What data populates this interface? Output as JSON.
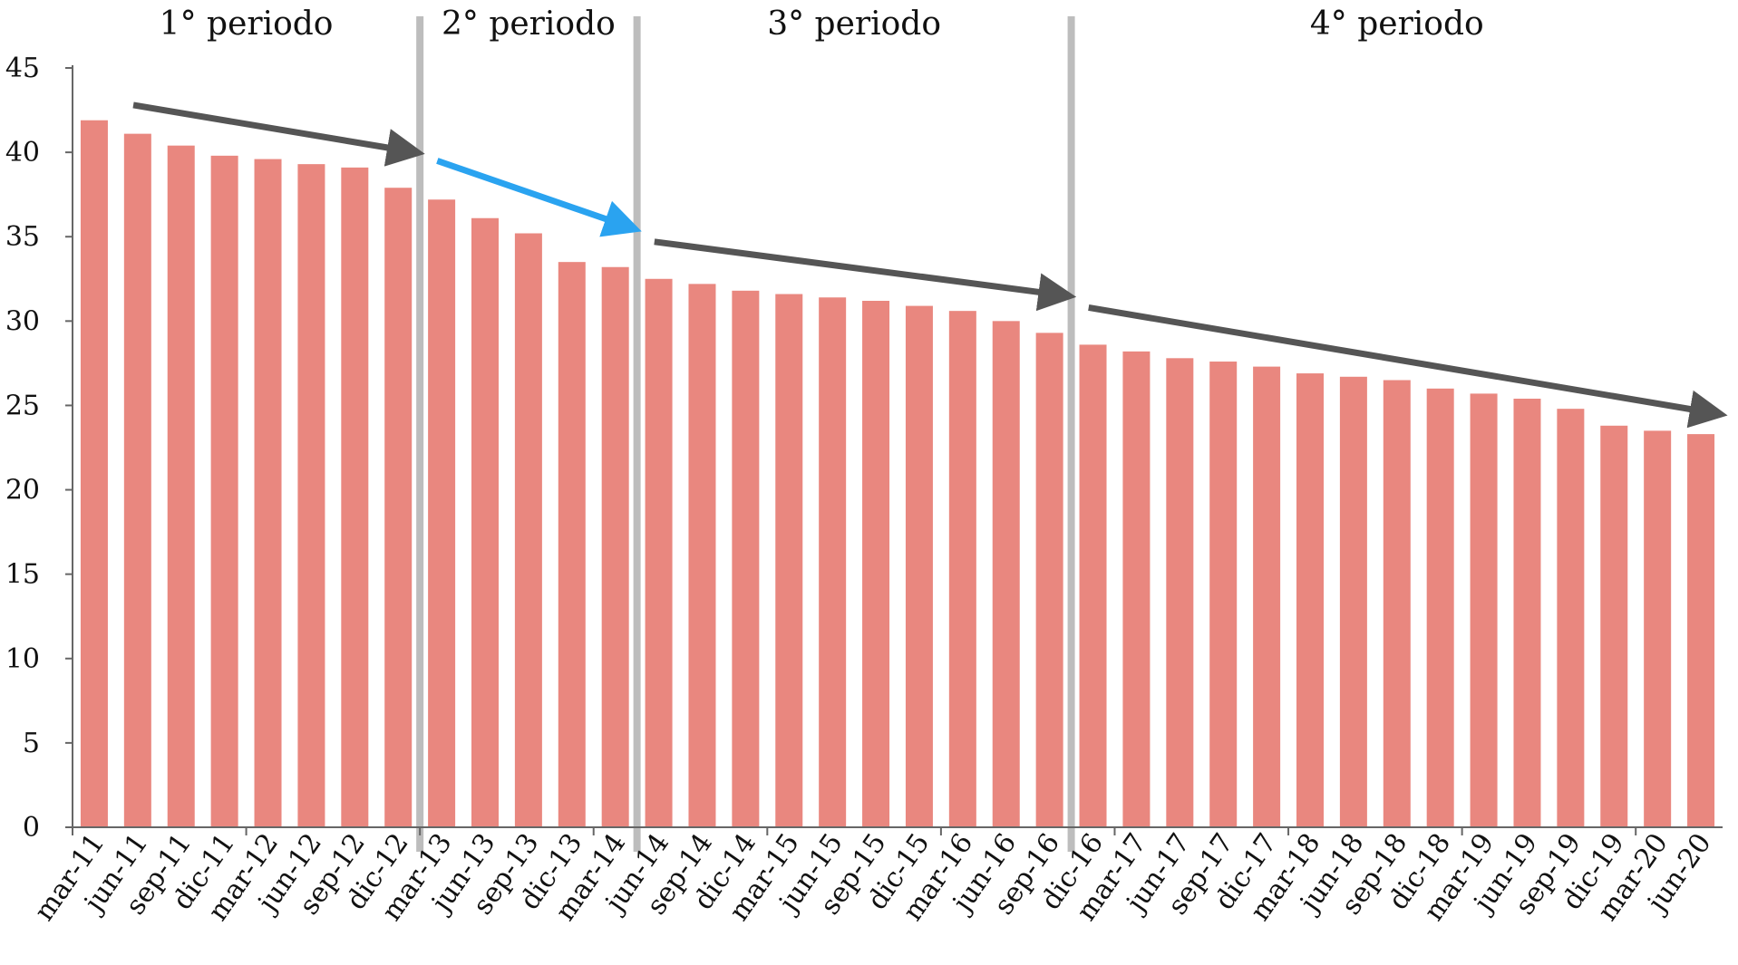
{
  "colors": {
    "bar": "#e9877f",
    "divider": "#bdbdbd",
    "axis": "#666666",
    "arrow_dark": "#555555",
    "arrow_blue": "#2aa3f0"
  },
  "chart_data": {
    "type": "bar",
    "title": "",
    "xlabel": "",
    "ylabel": "",
    "ylim": [
      0,
      45
    ],
    "y_ticks": [
      0,
      5,
      10,
      15,
      20,
      25,
      30,
      35,
      40,
      45
    ],
    "grid": false,
    "categories": [
      "mar-11",
      "jun-11",
      "sep-11",
      "dic-11",
      "mar-12",
      "jun-12",
      "sep-12",
      "dic-12",
      "mar-13",
      "jun-13",
      "sep-13",
      "dic-13",
      "mar-14",
      "jun-14",
      "sep-14",
      "dic-14",
      "mar-15",
      "jun-15",
      "sep-15",
      "dic-15",
      "mar-16",
      "jun-16",
      "sep-16",
      "dic-16",
      "mar-17",
      "jun-17",
      "sep-17",
      "dic-17",
      "mar-18",
      "jun-18",
      "sep-18",
      "dic-18",
      "mar-19",
      "jun-19",
      "sep-19",
      "dic-19",
      "mar-20",
      "jun-20"
    ],
    "values": [
      41.9,
      41.1,
      40.4,
      39.8,
      39.6,
      39.3,
      39.1,
      37.9,
      37.2,
      36.1,
      35.2,
      33.5,
      33.2,
      32.5,
      32.2,
      31.8,
      31.6,
      31.4,
      31.2,
      30.9,
      30.6,
      30.0,
      29.3,
      28.6,
      28.2,
      27.8,
      27.6,
      27.3,
      26.9,
      26.7,
      26.5,
      26.0,
      25.7,
      25.4,
      24.8,
      23.8,
      23.5,
      23.3
    ],
    "periods": [
      {
        "label": "1° periodo",
        "start_category": "mar-11",
        "end_category": "dic-12"
      },
      {
        "label": "2° periodo",
        "start_category": "mar-13",
        "end_category": "mar-14"
      },
      {
        "label": "3° periodo",
        "start_category": "jun-14",
        "end_category": "sep-16"
      },
      {
        "label": "4° periodo",
        "start_category": "dic-16",
        "end_category": "jun-20"
      }
    ],
    "trend_arrows": [
      {
        "from_category": "jun-11",
        "from_value": 42.8,
        "to_category": "dic-12",
        "to_value": 40.0,
        "color": "arrow_dark"
      },
      {
        "from_category": "mar-13",
        "from_value": 39.5,
        "to_category": "mar-14",
        "to_value": 35.5,
        "color": "arrow_blue"
      },
      {
        "from_category": "jun-14",
        "from_value": 34.7,
        "to_category": "sep-16",
        "to_value": 31.5,
        "color": "arrow_dark"
      },
      {
        "from_category": "dic-16",
        "from_value": 30.8,
        "to_category": "jun-20",
        "to_value": 24.5,
        "color": "arrow_dark"
      }
    ]
  }
}
